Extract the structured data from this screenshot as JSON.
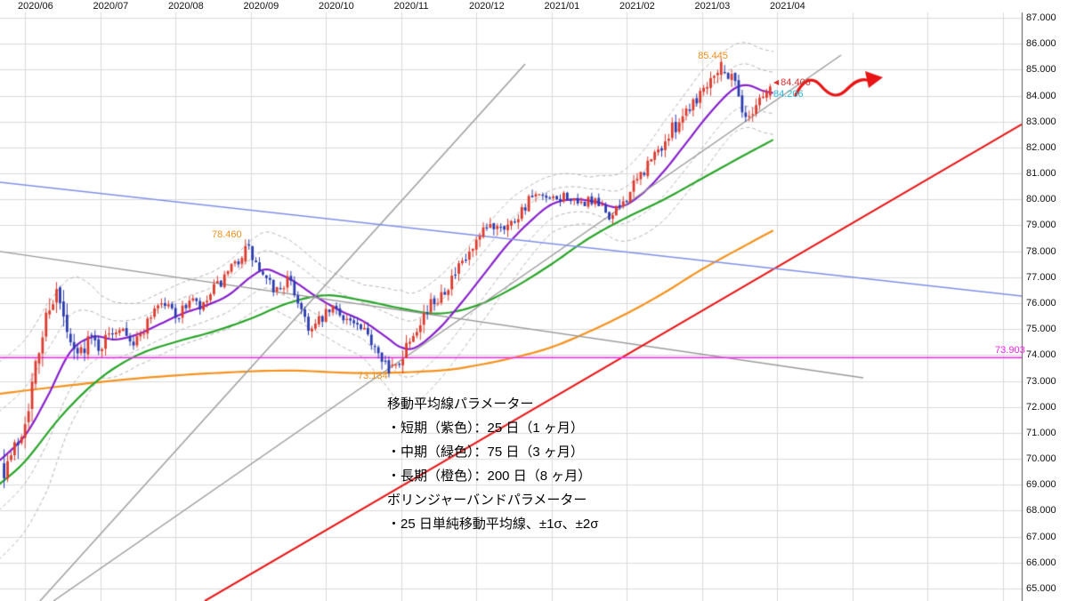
{
  "chart_data": {
    "type": "candlestick",
    "x_axis": {
      "tick_labels": [
        "2020/06",
        "2020/07",
        "2020/08",
        "2020/09",
        "2020/10",
        "2020/11",
        "2020/12",
        "2021/01",
        "2021/02",
        "2021/03",
        "2021/04"
      ]
    },
    "y_axis": {
      "min": 65.0,
      "max": 87.0,
      "step": 1.0,
      "tick_labels": [
        "87.000",
        "86.000",
        "85.000",
        "84.000",
        "83.000",
        "82.000",
        "81.000",
        "80.000",
        "79.000",
        "78.000",
        "77.000",
        "76.000",
        "75.000",
        "74.000",
        "73.000",
        "72.000",
        "71.000",
        "70.000",
        "69.000",
        "68.000",
        "67.000",
        "66.000",
        "65.000"
      ]
    },
    "grid_color": "#dadada",
    "candle_colors": {
      "up": "#dd3b2e",
      "down": "#2b3cae"
    },
    "price_path_anchors": [
      [
        -0.3,
        69.6
      ],
      [
        -0.18,
        70.1
      ],
      [
        -0.05,
        71.0
      ],
      [
        0.08,
        72.6
      ],
      [
        0.2,
        74.3
      ],
      [
        0.32,
        76.0
      ],
      [
        0.42,
        76.4
      ],
      [
        0.52,
        75.3
      ],
      [
        0.62,
        74.1
      ],
      [
        0.72,
        74.0
      ],
      [
        0.85,
        74.7
      ],
      [
        1.0,
        74.3
      ],
      [
        1.15,
        74.9
      ],
      [
        1.3,
        75.2
      ],
      [
        1.45,
        74.4
      ],
      [
        1.6,
        75.1
      ],
      [
        1.75,
        76.0
      ],
      [
        1.9,
        75.9
      ],
      [
        2.05,
        75.5
      ],
      [
        2.2,
        76.2
      ],
      [
        2.35,
        75.7
      ],
      [
        2.5,
        76.5
      ],
      [
        2.65,
        76.9
      ],
      [
        2.8,
        77.5
      ],
      [
        2.95,
        78.2
      ],
      [
        3.05,
        77.6
      ],
      [
        3.2,
        76.8
      ],
      [
        3.35,
        76.5
      ],
      [
        3.5,
        76.9
      ],
      [
        3.65,
        76.0
      ],
      [
        3.8,
        74.9
      ],
      [
        3.95,
        75.4
      ],
      [
        4.1,
        75.8
      ],
      [
        4.25,
        75.5
      ],
      [
        4.4,
        75.1
      ],
      [
        4.55,
        74.7
      ],
      [
        4.7,
        74.3
      ],
      [
        4.85,
        73.4
      ],
      [
        4.95,
        73.6
      ],
      [
        5.1,
        74.6
      ],
      [
        5.25,
        75.4
      ],
      [
        5.4,
        75.9
      ],
      [
        5.55,
        76.5
      ],
      [
        5.7,
        77.0
      ],
      [
        5.85,
        77.6
      ],
      [
        6.0,
        78.2
      ],
      [
        6.15,
        78.9
      ],
      [
        6.3,
        79.1
      ],
      [
        6.45,
        79.0
      ],
      [
        6.6,
        79.6
      ],
      [
        6.75,
        80.1
      ],
      [
        6.9,
        80.0
      ],
      [
        7.05,
        79.9
      ],
      [
        7.2,
        80.2
      ],
      [
        7.35,
        79.7
      ],
      [
        7.5,
        80.0
      ],
      [
        7.65,
        79.7
      ],
      [
        7.8,
        79.3
      ],
      [
        7.95,
        79.9
      ],
      [
        8.1,
        80.5
      ],
      [
        8.25,
        81.2
      ],
      [
        8.4,
        81.8
      ],
      [
        8.55,
        82.4
      ],
      [
        8.7,
        83.1
      ],
      [
        8.85,
        83.7
      ],
      [
        9.0,
        84.2
      ],
      [
        9.1,
        84.7
      ],
      [
        9.2,
        85.1
      ],
      [
        9.3,
        84.8
      ],
      [
        9.4,
        84.9
      ],
      [
        9.5,
        84.0
      ],
      [
        9.58,
        83.0
      ],
      [
        9.66,
        83.4
      ],
      [
        9.75,
        83.9
      ],
      [
        9.85,
        84.1
      ],
      [
        9.95,
        84.3
      ]
    ],
    "overlays": {
      "ma25": {
        "label": "短期 25日",
        "color": "#8822cc",
        "anchors": [
          [
            -0.35,
            69.9
          ],
          [
            0.0,
            70.9
          ],
          [
            0.3,
            72.4
          ],
          [
            0.6,
            74.1
          ],
          [
            0.9,
            74.7
          ],
          [
            1.2,
            74.6
          ],
          [
            1.5,
            74.8
          ],
          [
            1.8,
            75.2
          ],
          [
            2.1,
            75.6
          ],
          [
            2.4,
            75.9
          ],
          [
            2.7,
            76.3
          ],
          [
            3.0,
            77.0
          ],
          [
            3.2,
            77.3
          ],
          [
            3.4,
            77.1
          ],
          [
            3.6,
            76.8
          ],
          [
            3.9,
            76.2
          ],
          [
            4.2,
            75.7
          ],
          [
            4.5,
            75.3
          ],
          [
            4.8,
            74.7
          ],
          [
            5.0,
            74.3
          ],
          [
            5.2,
            74.3
          ],
          [
            5.5,
            75.0
          ],
          [
            5.8,
            76.0
          ],
          [
            6.1,
            77.1
          ],
          [
            6.4,
            78.2
          ],
          [
            6.7,
            79.1
          ],
          [
            7.0,
            79.8
          ],
          [
            7.3,
            80.0
          ],
          [
            7.6,
            79.9
          ],
          [
            7.9,
            79.7
          ],
          [
            8.2,
            80.2
          ],
          [
            8.5,
            81.1
          ],
          [
            8.8,
            82.2
          ],
          [
            9.1,
            83.3
          ],
          [
            9.4,
            84.2
          ],
          [
            9.6,
            84.4
          ],
          [
            9.8,
            84.2
          ],
          [
            9.95,
            84.1
          ]
        ]
      },
      "ma75": {
        "label": "中期 75日",
        "color": "#2aa52a",
        "anchors": [
          [
            -0.35,
            69.0
          ],
          [
            0.0,
            69.9
          ],
          [
            0.5,
            71.7
          ],
          [
            1.0,
            73.1
          ],
          [
            1.5,
            74.0
          ],
          [
            2.0,
            74.5
          ],
          [
            2.5,
            74.9
          ],
          [
            3.0,
            75.4
          ],
          [
            3.5,
            76.0
          ],
          [
            4.0,
            76.3
          ],
          [
            4.5,
            76.1
          ],
          [
            5.0,
            75.8
          ],
          [
            5.5,
            75.6
          ],
          [
            6.0,
            75.9
          ],
          [
            6.5,
            76.6
          ],
          [
            7.0,
            77.5
          ],
          [
            7.5,
            78.5
          ],
          [
            8.0,
            79.3
          ],
          [
            8.5,
            80.0
          ],
          [
            9.0,
            80.8
          ],
          [
            9.5,
            81.6
          ],
          [
            9.95,
            82.3
          ]
        ]
      },
      "ma200": {
        "label": "長期 200日",
        "color": "#f5921e",
        "anchors": [
          [
            -0.35,
            72.5
          ],
          [
            0.5,
            72.8
          ],
          [
            1.5,
            73.1
          ],
          [
            2.5,
            73.3
          ],
          [
            3.5,
            73.4
          ],
          [
            4.5,
            73.3
          ],
          [
            5.5,
            73.4
          ],
          [
            6.0,
            73.6
          ],
          [
            6.5,
            73.9
          ],
          [
            7.0,
            74.3
          ],
          [
            7.5,
            74.9
          ],
          [
            8.0,
            75.6
          ],
          [
            8.5,
            76.4
          ],
          [
            9.0,
            77.3
          ],
          [
            9.5,
            78.1
          ],
          [
            9.95,
            78.8
          ]
        ]
      },
      "bollinger": {
        "label": "±1σ ±2σ",
        "color": "#b3b3b3",
        "multipliers": [
          1,
          2
        ],
        "sigma_anchors": [
          [
            -0.35,
            1.9
          ],
          [
            0.3,
            1.8
          ],
          [
            0.7,
            1.3
          ],
          [
            1.0,
            0.8
          ],
          [
            1.5,
            0.6
          ],
          [
            2.0,
            0.6
          ],
          [
            2.5,
            0.6
          ],
          [
            3.0,
            0.7
          ],
          [
            3.5,
            0.75
          ],
          [
            4.0,
            0.65
          ],
          [
            4.5,
            0.7
          ],
          [
            5.0,
            1.1
          ],
          [
            5.5,
            1.0
          ],
          [
            6.0,
            0.9
          ],
          [
            6.5,
            0.8
          ],
          [
            7.0,
            0.55
          ],
          [
            7.5,
            0.45
          ],
          [
            8.0,
            0.7
          ],
          [
            8.5,
            0.95
          ],
          [
            9.0,
            1.0
          ],
          [
            9.4,
            0.85
          ],
          [
            9.7,
            0.8
          ],
          [
            9.95,
            0.8
          ]
        ]
      }
    },
    "trend_lines": [
      {
        "id": "gray-steep-ascending",
        "color": "#9a9a9a",
        "width": 1.4,
        "t1": 0.201,
        "p1": 64.52,
        "t2": 6.651,
        "p2": 85.22
      },
      {
        "id": "gray-long-ascending",
        "color": "#9a9a9a",
        "width": 1.4,
        "t1": 0.379,
        "p1": 64.52,
        "t2": 10.852,
        "p2": 85.56
      },
      {
        "id": "gray-descending",
        "color": "#9a9a9a",
        "width": 1.4,
        "t1": -0.331,
        "p1": 77.99,
        "t2": 11.148,
        "p2": 73.12
      },
      {
        "id": "red-ascending-support",
        "color": "#e81414",
        "width": 2.0,
        "t1": 2.391,
        "p1": 64.52,
        "t2": 13.254,
        "p2": 82.89
      },
      {
        "id": "blue-descending",
        "color": "#8090e8",
        "width": 1.5,
        "t1": -0.331,
        "p1": 80.66,
        "t2": 13.254,
        "p2": 76.27
      },
      {
        "id": "magenta-horizontal",
        "color": "#ff22ff",
        "width": 1.5,
        "price": 73.903
      }
    ],
    "key_points": [
      {
        "label": "swing-high",
        "value": 85.445,
        "t": 9.25
      },
      {
        "label": "swing-high",
        "value": 78.46,
        "t": 2.95
      },
      {
        "label": "swing-low",
        "value": 73.134,
        "t": 4.85
      },
      {
        "label": "last-price-upper",
        "value": 84.406
      },
      {
        "label": "last-price-lower",
        "value": 84.206
      },
      {
        "label": "horizontal-level",
        "value": 73.903
      }
    ],
    "annotations": [
      {
        "text": "85.445",
        "color": "#f0901e",
        "t": 8.95,
        "price": 85.49
      },
      {
        "text": "78.460",
        "color": "#f0901e",
        "t": 2.485,
        "price": 78.6
      },
      {
        "text": "73.134",
        "color": "#f0901e",
        "t": 4.426,
        "price": 73.15
      },
      {
        "text": "84.406",
        "marker": "◀",
        "color": "#e03030",
        "t": 9.953,
        "price": 84.45
      },
      {
        "text": "84.206",
        "color": "#29b6d8",
        "t": 9.953,
        "price": 84.03
      },
      {
        "text": "73.903",
        "color": "#ff22ff",
        "t": 12.9,
        "price": 74.14
      }
    ],
    "arrow": {
      "color": "#e81414",
      "note": "red-wavy-forecast-arrow"
    },
    "legend": {
      "lines": [
        "移動平均線パラメーター",
        "・短期（紫色）：25 日（1 ヶ月）",
        "・中期（緑色）：75 日（3 ヶ月）",
        "・長期（橙色）：200 日（8 ヶ月）",
        "ボリンジャーバンドパラメーター",
        "・25 日単純移動平均線、±1σ、±2σ"
      ]
    }
  }
}
